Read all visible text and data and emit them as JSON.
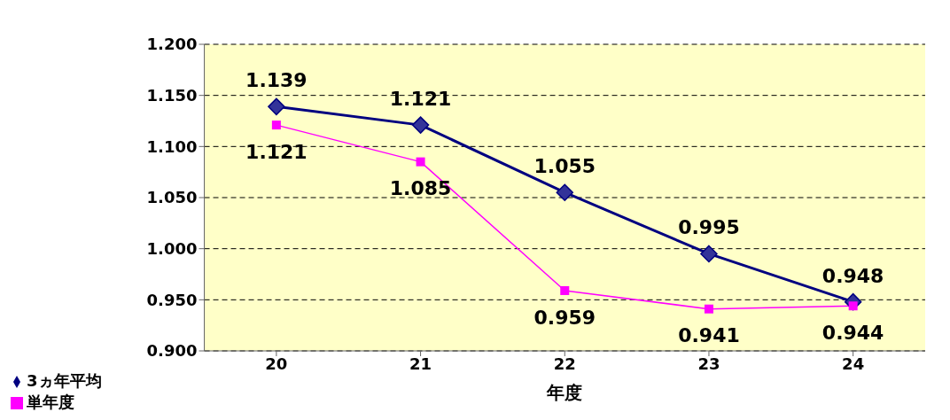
{
  "chart_data": {
    "type": "line",
    "xlabel": "年度",
    "categories": [
      "20",
      "21",
      "22",
      "23",
      "24"
    ],
    "series": [
      {
        "name": "3ヵ年平均",
        "color": "#000080",
        "marker": "diamond",
        "values": [
          1.139,
          1.121,
          1.055,
          0.995,
          0.948
        ]
      },
      {
        "name": "単年度",
        "color": "#ff00ff",
        "marker": "square",
        "values": [
          1.121,
          1.085,
          0.959,
          0.941,
          0.944
        ]
      }
    ],
    "ylim": [
      0.9,
      1.2
    ],
    "yticks": [
      {
        "value": 0.9,
        "label": "0.900"
      },
      {
        "value": 0.95,
        "label": "0.950"
      },
      {
        "value": 1.0,
        "label": "1.000"
      },
      {
        "value": 1.05,
        "label": "1.050"
      },
      {
        "value": 1.1,
        "label": "1.100"
      },
      {
        "value": 1.15,
        "label": "1.150"
      },
      {
        "value": 1.2,
        "label": "1.200"
      }
    ],
    "grid": "y",
    "legend": "bottom left",
    "data_labels": true,
    "line_style": "solid"
  }
}
